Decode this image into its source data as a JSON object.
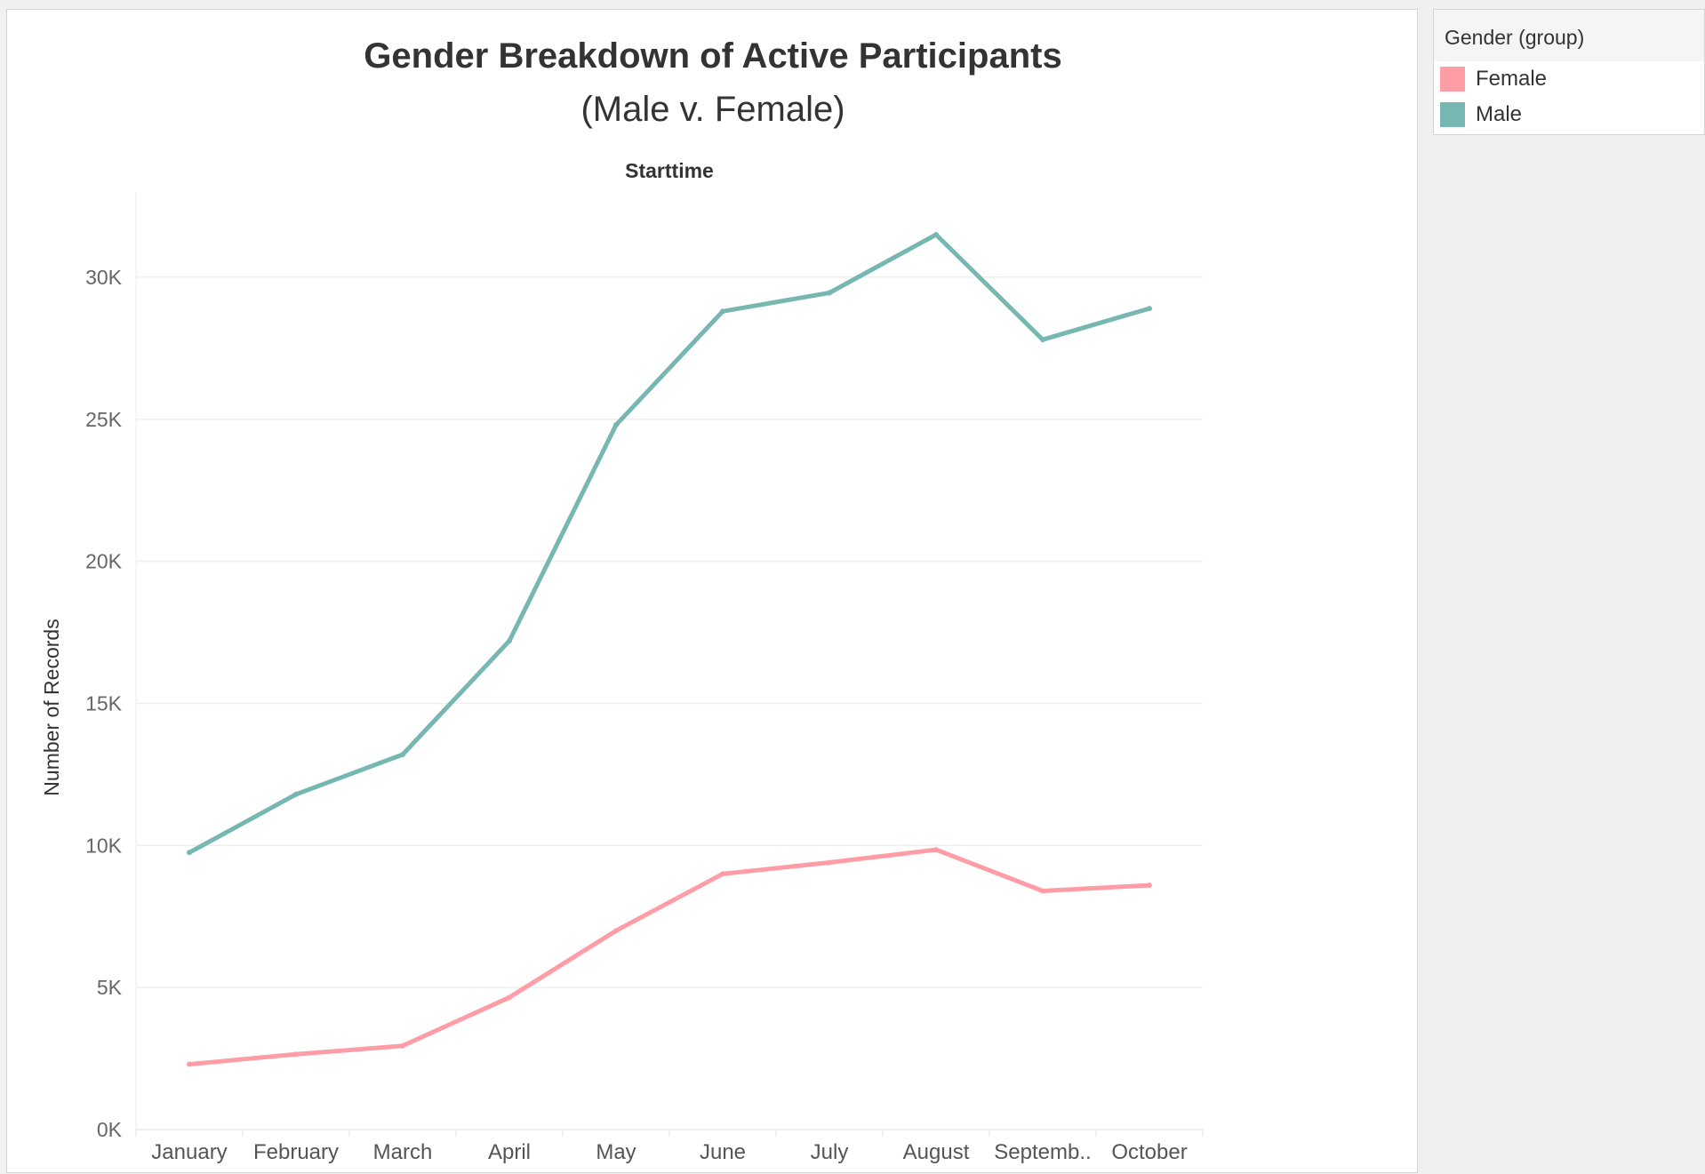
{
  "chart_data": {
    "type": "line",
    "title": "Gender Breakdown of Active Participants",
    "subtitle": "(Male v. Female)",
    "column_header": "Starttime",
    "ylabel": "Number of Records",
    "xlabel": "",
    "categories": [
      "January",
      "February",
      "March",
      "April",
      "May",
      "June",
      "July",
      "August",
      "Septemb..",
      "October"
    ],
    "series": [
      {
        "name": "Female",
        "color": "#ff9da7",
        "values": [
          2300,
          2650,
          2950,
          4650,
          7000,
          9000,
          9400,
          9850,
          8400,
          8600
        ]
      },
      {
        "name": "Male",
        "color": "#76b7b2",
        "values": [
          9750,
          11800,
          13200,
          17200,
          24800,
          28800,
          29450,
          31500,
          27800,
          28900
        ]
      }
    ],
    "ylim": [
      0,
      33000
    ],
    "yticks": [
      0,
      5000,
      10000,
      15000,
      20000,
      25000,
      30000
    ],
    "ytick_labels": [
      "0K",
      "5K",
      "10K",
      "15K",
      "20K",
      "25K",
      "30K"
    ],
    "grid": true,
    "legend_position": "right"
  },
  "legend": {
    "title": "Gender (group)",
    "items": [
      {
        "label": "Female",
        "color": "#ff9da7"
      },
      {
        "label": "Male",
        "color": "#76b7b2"
      }
    ]
  }
}
